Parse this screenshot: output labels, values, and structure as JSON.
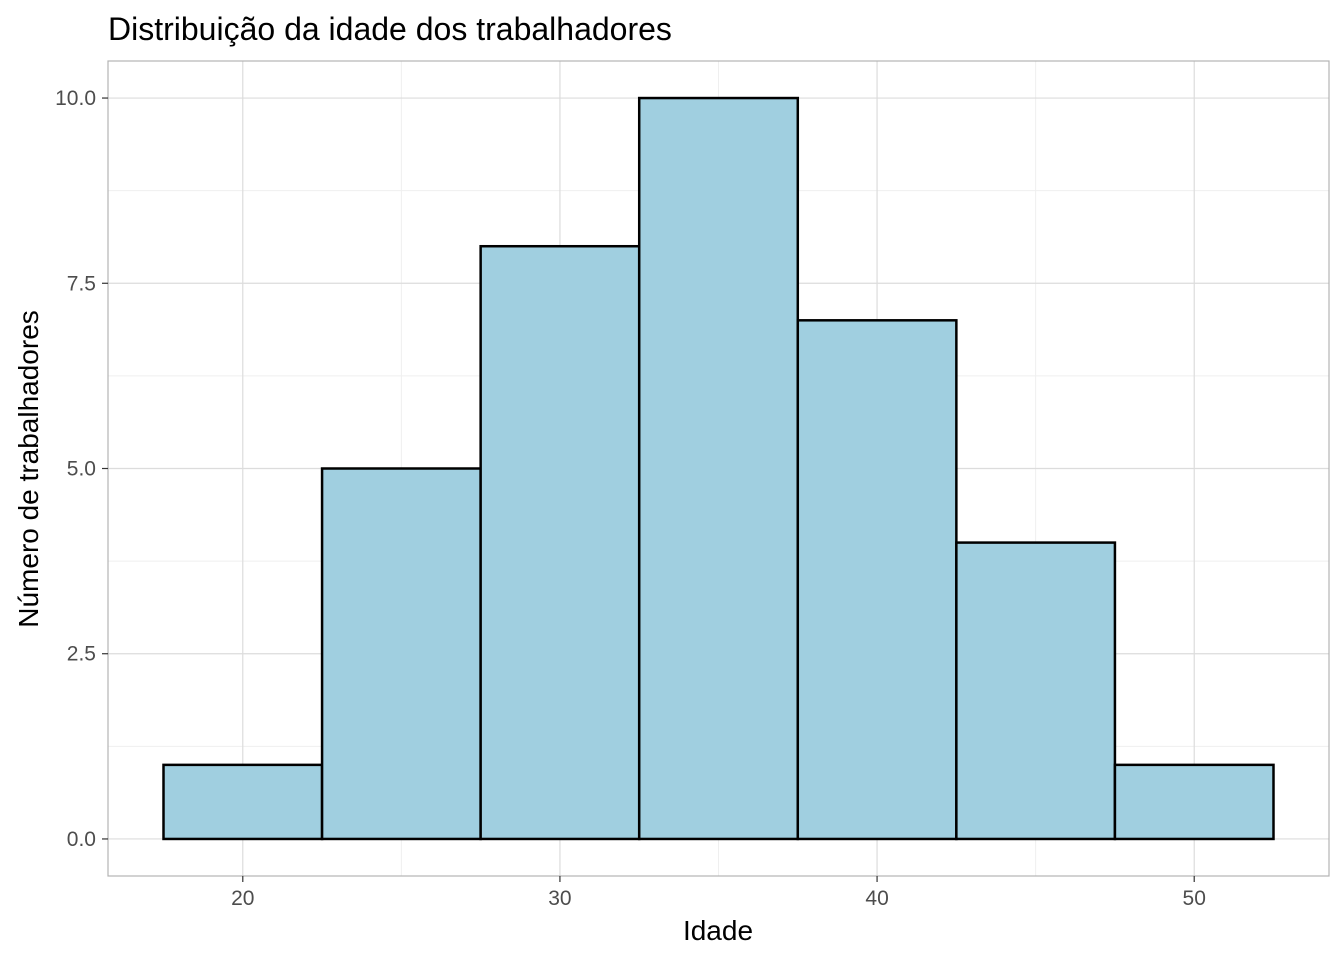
{
  "chart_data": {
    "type": "bar",
    "subtype": "histogram",
    "title": "Distribuição da idade dos trabalhadores",
    "xlabel": "Idade",
    "ylabel": "Número de trabalhadores",
    "bins": [
      {
        "x_start": 17.5,
        "x_end": 22.5,
        "count": 1
      },
      {
        "x_start": 22.5,
        "x_end": 27.5,
        "count": 5
      },
      {
        "x_start": 27.5,
        "x_end": 32.5,
        "count": 8
      },
      {
        "x_start": 32.5,
        "x_end": 37.5,
        "count": 10
      },
      {
        "x_start": 37.5,
        "x_end": 42.5,
        "count": 7
      },
      {
        "x_start": 42.5,
        "x_end": 47.5,
        "count": 4
      },
      {
        "x_start": 47.5,
        "x_end": 52.5,
        "count": 1
      }
    ],
    "x_ticks": [
      20,
      30,
      40,
      50
    ],
    "x_tick_labels": [
      "20",
      "30",
      "40",
      "50"
    ],
    "y_ticks": [
      0,
      2.5,
      5,
      7.5,
      10
    ],
    "y_tick_labels": [
      "0.0",
      "2.5",
      "5.0",
      "7.5",
      "10.0"
    ],
    "xlim": [
      15.75,
      54.25
    ],
    "ylim": [
      -0.5,
      10.5
    ],
    "grid": true,
    "legend": "none",
    "colors": {
      "bar_fill": "#a0cfe0",
      "bar_stroke": "#000000",
      "panel_border": "#b3b3b3",
      "grid_major": "#dcdcdc",
      "grid_minor": "#efefef",
      "background": "#ffffff"
    }
  }
}
